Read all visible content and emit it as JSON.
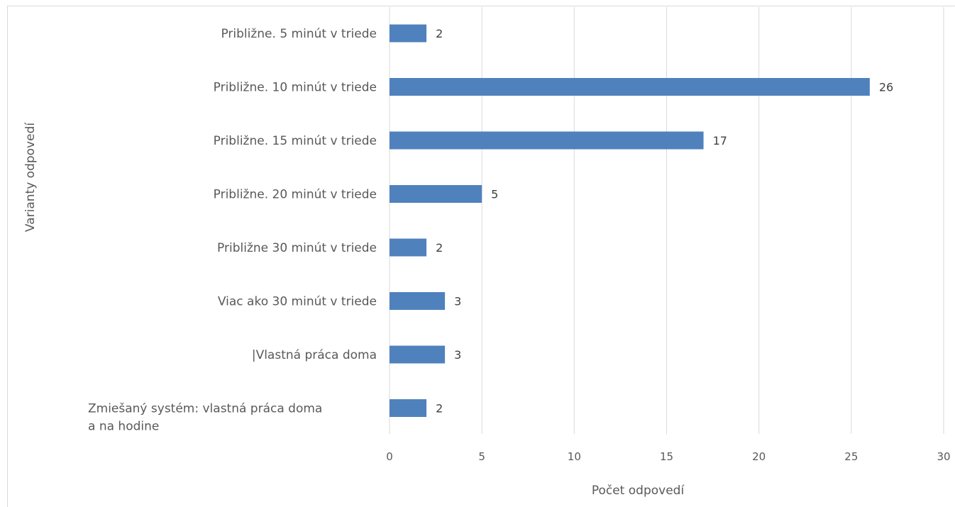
{
  "chart_data": {
    "type": "bar",
    "orientation": "horizontal",
    "categories": [
      "Približne. 5 minút v triede",
      "Približne. 10 minút v triede",
      "Približne. 15 minút v triede",
      "Približne. 20 minút v triede",
      "Približne 30 minút v triede",
      "Viac ako 30 minút v triede",
      "|Vlastná práca doma",
      "Zmiešaný systém: vlastná práca doma a na hodine"
    ],
    "category_lines": [
      [
        "Približne. 5 minút v triede"
      ],
      [
        "Približne. 10 minút v triede"
      ],
      [
        "Približne. 15 minút v triede"
      ],
      [
        "Približne. 20 minút v triede"
      ],
      [
        "Približne 30 minút v triede"
      ],
      [
        "Viac ako 30 minút v triede"
      ],
      [
        "|Vlastná práca doma"
      ],
      [
        "Zmiešaný systém: vlastná práca doma",
        "a na hodine"
      ]
    ],
    "values": [
      2,
      26,
      17,
      5,
      2,
      3,
      3,
      2
    ],
    "data_labels": [
      "2",
      "26",
      "17",
      "5",
      "2",
      "3",
      "3",
      "2"
    ],
    "title": "",
    "xlabel": "Počet odpovedí",
    "ylabel": "Varianty odpovedí",
    "xlim": [
      0,
      30
    ],
    "xticks": [
      0,
      5,
      10,
      15,
      20,
      25,
      30
    ],
    "xtick_labels": [
      "0",
      "5",
      "10",
      "15",
      "20",
      "25",
      "30"
    ],
    "grid": true,
    "legend": "none",
    "colors": {
      "bar": "#4f81bd",
      "grid": "#d9d9d9",
      "text": "#595959"
    }
  }
}
